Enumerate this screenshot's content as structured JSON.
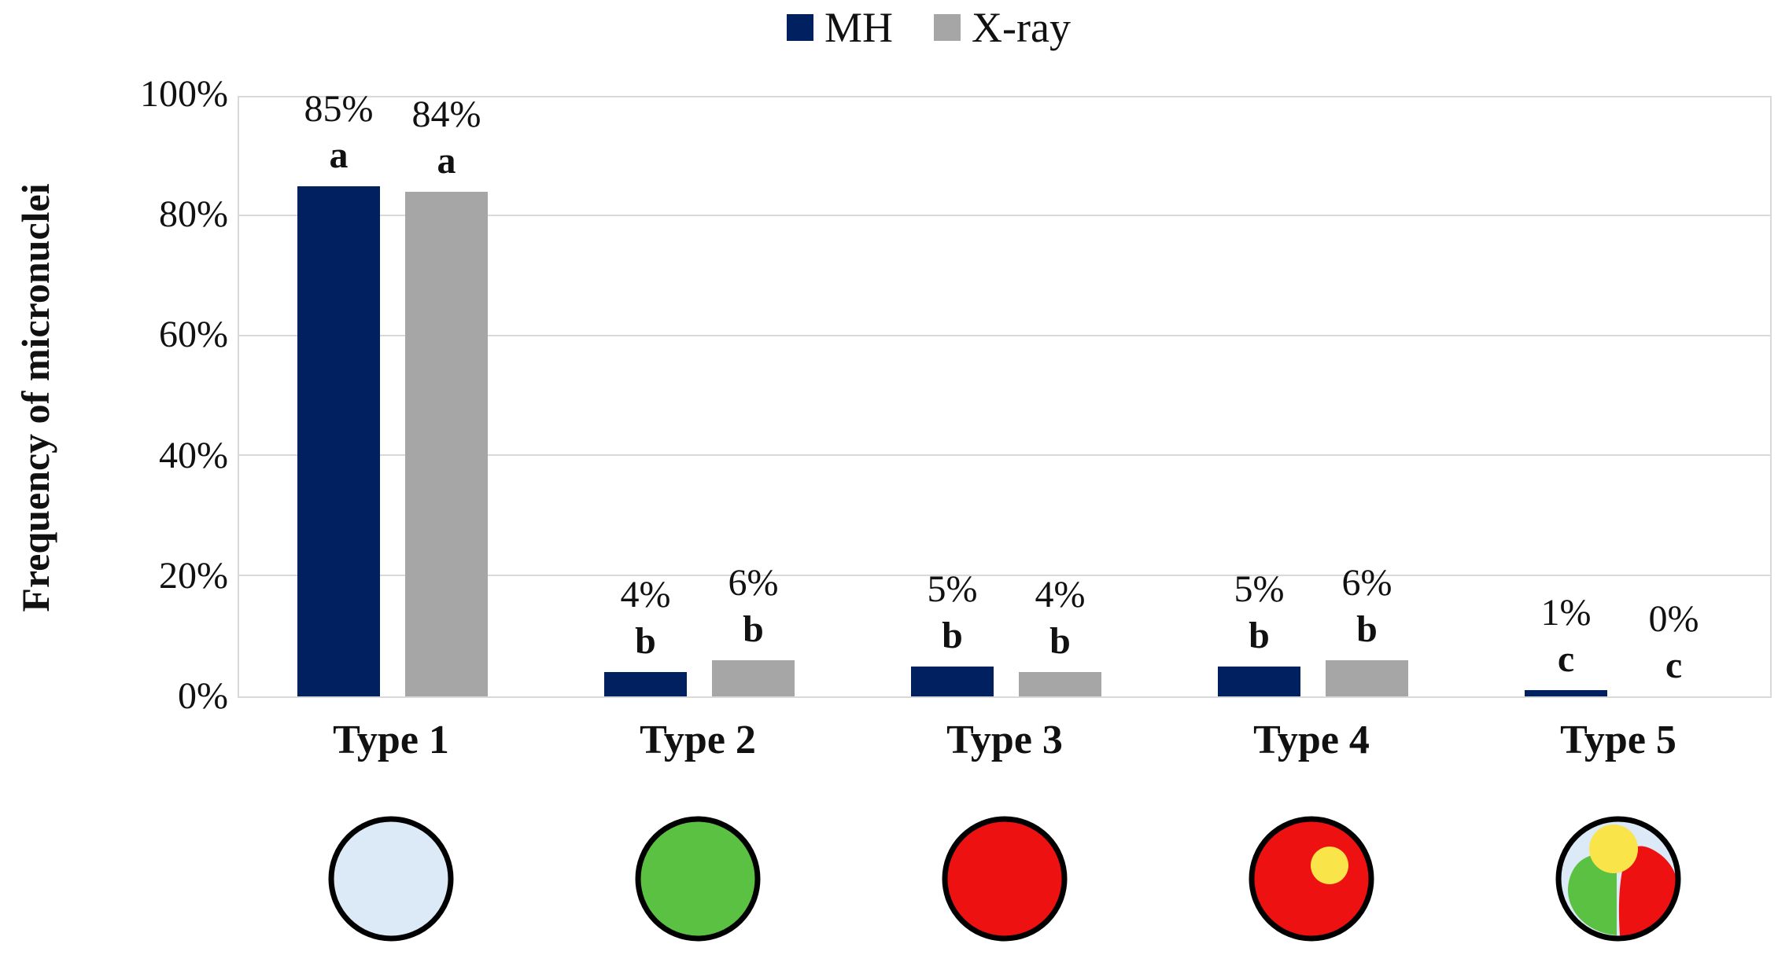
{
  "figure": {
    "background": "#FFFFFF"
  },
  "legend": {
    "items": [
      {
        "label": "MH",
        "color": "#002060"
      },
      {
        "label": "X-ray",
        "color": "#A6A6A6"
      }
    ]
  },
  "chart_data": {
    "type": "bar",
    "title": "",
    "xlabel": "",
    "ylabel": "Frequency of micronuclei",
    "ylim": [
      0,
      100
    ],
    "yticks": [
      0,
      20,
      40,
      60,
      80,
      100
    ],
    "ytick_labels": [
      "0%",
      "20%",
      "40%",
      "60%",
      "80%",
      "100%"
    ],
    "grid": true,
    "legend_position": "top-center",
    "categories": [
      "Type 1",
      "Type 2",
      "Type 3",
      "Type 4",
      "Type 5"
    ],
    "series": [
      {
        "name": "MH",
        "color": "#002060",
        "values": [
          85,
          4,
          5,
          5,
          1
        ],
        "data_labels": [
          "85%",
          "4%",
          "5%",
          "5%",
          "1%"
        ],
        "significance_letters": [
          "a",
          "b",
          "b",
          "b",
          "c"
        ]
      },
      {
        "name": "X-ray",
        "color": "#A6A6A6",
        "values": [
          84,
          6,
          4,
          6,
          0
        ],
        "data_labels": [
          "84%",
          "6%",
          "4%",
          "6%",
          "0%"
        ],
        "significance_letters": [
          "a",
          "b",
          "b",
          "b",
          "c"
        ]
      }
    ],
    "category_icons": [
      {
        "name": "type-1-cell-icon",
        "kind": "solid",
        "fill": "#DCE9F7",
        "outline": "#000000"
      },
      {
        "name": "type-2-cell-icon",
        "kind": "solid",
        "fill": "#5BC142",
        "outline": "#000000"
      },
      {
        "name": "type-3-cell-icon",
        "kind": "solid",
        "fill": "#EE1111",
        "outline": "#000000"
      },
      {
        "name": "type-4-cell-icon",
        "kind": "dot",
        "fill": "#EE1111",
        "dot_fill": "#F9E54A",
        "outline": "#000000"
      },
      {
        "name": "type-5-cell-icon",
        "kind": "multi",
        "fill": "#DCE9F7",
        "green": "#5BC142",
        "red": "#EE1111",
        "yellow": "#F9E54A",
        "outline": "#000000"
      }
    ],
    "colors": {
      "gridline": "#D9D9D9",
      "text": "#111111"
    }
  }
}
